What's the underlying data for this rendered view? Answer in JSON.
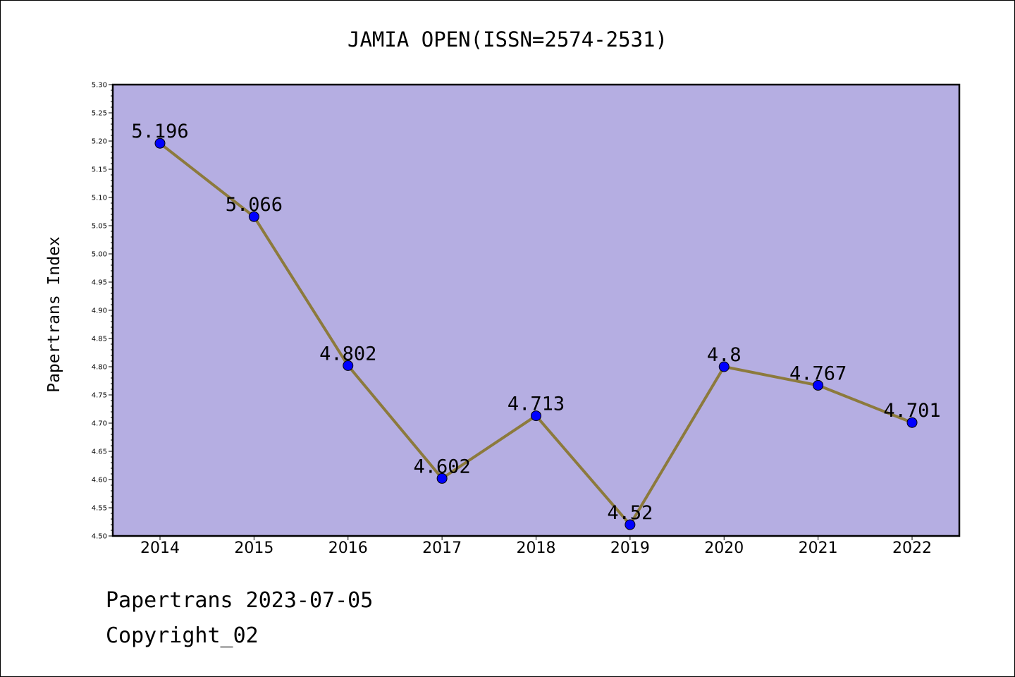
{
  "chart_data": {
    "type": "line",
    "title": "JAMIA OPEN(ISSN=2574-2531)",
    "ylabel": "Papertrans Index",
    "xlabel": "",
    "categories": [
      "2014",
      "2015",
      "2016",
      "2017",
      "2018",
      "2019",
      "2020",
      "2021",
      "2022"
    ],
    "values": [
      5.196,
      5.066,
      4.802,
      4.602,
      4.713,
      4.52,
      4.8,
      4.767,
      4.701
    ],
    "data_labels": [
      "5.196",
      "5.066",
      "4.802",
      "4.602",
      "4.713",
      "4.52",
      "4.8",
      "4.767",
      "4.701"
    ],
    "ylim": [
      4.5,
      5.3
    ],
    "yticks": [
      "4.50",
      "4.55",
      "4.60",
      "4.65",
      "4.70",
      "4.75",
      "4.80",
      "4.85",
      "4.90",
      "4.95",
      "5.00",
      "5.05",
      "5.10",
      "5.15",
      "5.20",
      "5.25",
      "5.30"
    ],
    "grid": false,
    "colors": {
      "plot_background": "#b5aee2",
      "line": "#8c7a3c",
      "marker": "#0000ff"
    }
  },
  "footer": {
    "line1": "Papertrans 2023-07-05",
    "line2": "Copyright_02"
  }
}
